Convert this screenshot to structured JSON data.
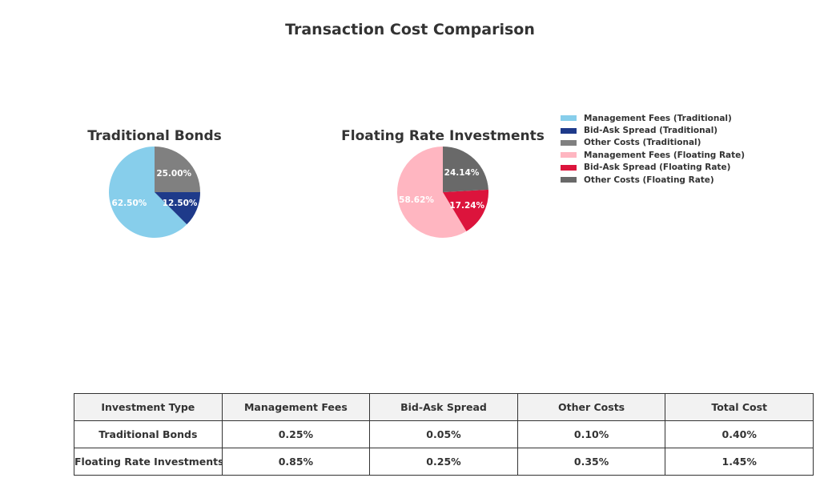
{
  "title": "Transaction Cost Comparison",
  "chart_data": [
    {
      "type": "pie",
      "title": "Traditional Bonds",
      "labels": [
        "Management Fees (Traditional)",
        "Bid-Ask Spread (Traditional)",
        "Other Costs (Traditional)"
      ],
      "values": [
        0.25,
        0.05,
        0.1
      ],
      "percent_labels": [
        "62.50%",
        "12.50%",
        "25.00%"
      ],
      "colors": [
        "#87ceeb",
        "#1e3a8a",
        "#808080"
      ]
    },
    {
      "type": "pie",
      "title": "Floating Rate Investments",
      "labels": [
        "Management Fees (Floating Rate)",
        "Bid-Ask Spread (Floating Rate)",
        "Other Costs (Floating Rate)"
      ],
      "values": [
        0.85,
        0.25,
        0.35
      ],
      "percent_labels": [
        "58.62%",
        "17.24%",
        "24.14%"
      ],
      "colors": [
        "#ffb6c1",
        "#dc143c",
        "#696969"
      ]
    },
    {
      "type": "table",
      "columns": [
        "Investment Type",
        "Management Fees",
        "Bid-Ask Spread",
        "Other Costs",
        "Total Cost"
      ],
      "rows": [
        [
          "Traditional Bonds",
          "0.25%",
          "0.05%",
          "0.10%",
          "0.40%"
        ],
        [
          "Floating Rate Investments",
          "0.85%",
          "0.25%",
          "0.35%",
          "1.45%"
        ]
      ]
    }
  ],
  "legend": {
    "position": "top-right",
    "items": [
      {
        "label": "Management Fees (Traditional)",
        "color": "#87ceeb"
      },
      {
        "label": "Bid-Ask Spread (Traditional)",
        "color": "#1e3a8a"
      },
      {
        "label": "Other Costs (Traditional)",
        "color": "#808080"
      },
      {
        "label": "Management Fees (Floating Rate)",
        "color": "#ffb6c1"
      },
      {
        "label": "Bid-Ask Spread (Floating Rate)",
        "color": "#dc143c"
      },
      {
        "label": "Other Costs (Floating Rate)",
        "color": "#696969"
      }
    ]
  }
}
